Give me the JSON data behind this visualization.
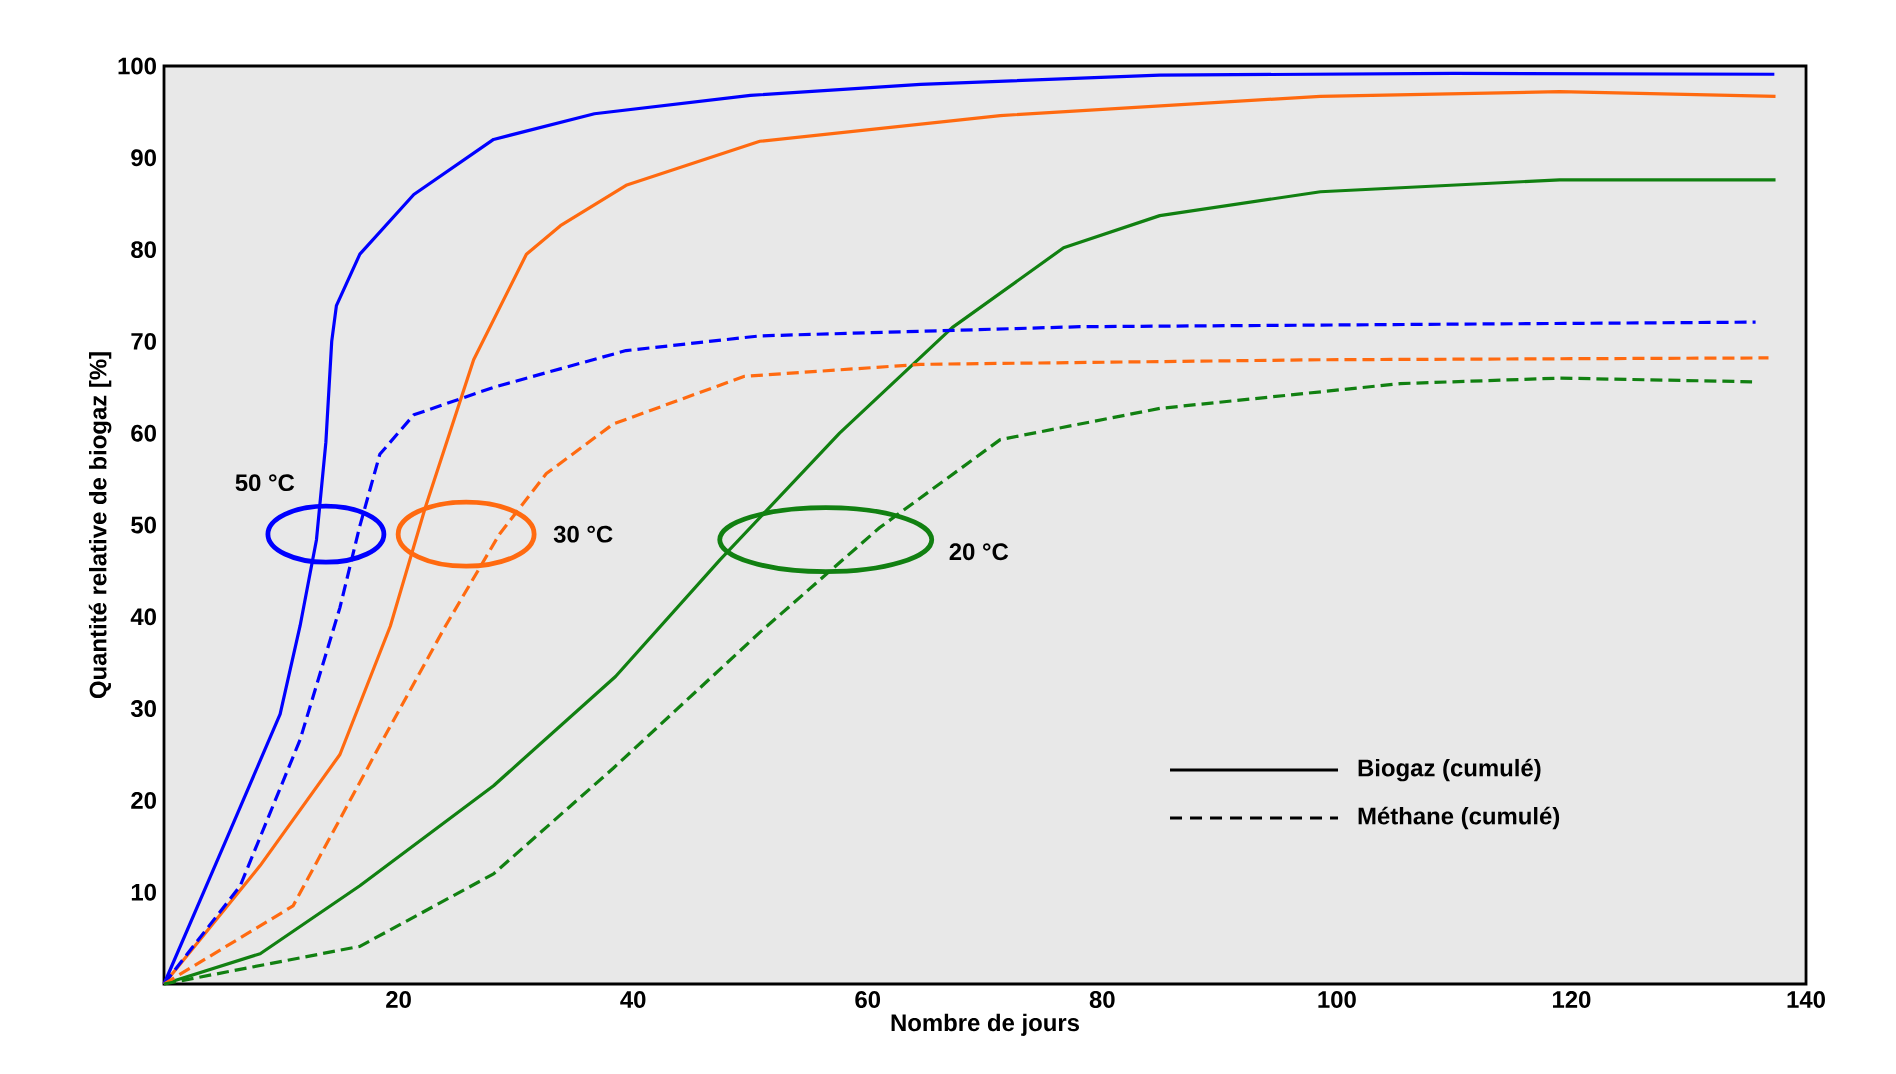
{
  "chart_data": {
    "type": "line",
    "xlabel": "Nombre de jours",
    "ylabel": "Quantité relative de biogaz [%]",
    "xlim": [
      0,
      140
    ],
    "ylim": [
      0,
      100
    ],
    "xticks": [
      20,
      40,
      60,
      80,
      100,
      120,
      140
    ],
    "yticks": [
      10,
      20,
      30,
      40,
      50,
      60,
      70,
      80,
      90,
      100
    ],
    "grid": false,
    "marker": "none",
    "series": [
      {
        "color": "#0000ff",
        "line_style": "solid",
        "x": [
          0,
          5.3,
          9.9,
          11.6,
          13,
          13.8,
          14.3,
          14.7,
          16.7,
          21.3,
          28.1,
          36.7,
          50,
          64.5,
          84.9,
          110,
          137.3
        ],
        "values": [
          0,
          15.7,
          29.4,
          39,
          48.4,
          59,
          70,
          73.9,
          79.5,
          86,
          92,
          94.8,
          96.8,
          98,
          99,
          99.2,
          99.1
        ]
      },
      {
        "color": "#ff6a10",
        "line_style": "solid",
        "x": [
          0,
          8.2,
          15,
          19.3,
          22.3,
          26.4,
          30.9,
          33.8,
          39.4,
          50.8,
          71.3,
          98.6,
          119,
          137.4
        ],
        "values": [
          0,
          12.9,
          25,
          39,
          52,
          68,
          79.5,
          82.6,
          87,
          91.8,
          94.6,
          96.7,
          97.2,
          96.7
        ]
      },
      {
        "color": "#118011",
        "line_style": "solid",
        "x": [
          0,
          8.2,
          16.7,
          28.1,
          38.5,
          47.4,
          57.6,
          67.2,
          76.7,
          84.9,
          98.6,
          119,
          137.4
        ],
        "values": [
          0,
          3.3,
          10.7,
          21.6,
          33.5,
          46.2,
          60,
          71.5,
          80.2,
          83.7,
          86.3,
          87.6,
          87.6
        ]
      },
      {
        "color": "#0000ff",
        "line_style": "dashed",
        "x": [
          0,
          6.5,
          11.6,
          15,
          16.7,
          18.4,
          21.3,
          28.1,
          39.4,
          50.8,
          78.1,
          135.7
        ],
        "values": [
          0,
          10.7,
          26.6,
          41,
          49.9,
          57.7,
          62,
          65,
          69,
          70.6,
          71.6,
          72.1
        ]
      },
      {
        "color": "#ff6a10",
        "line_style": "dashed",
        "x": [
          0,
          11,
          18.4,
          24,
          28.6,
          32.6,
          38.3,
          49.5,
          64.5,
          98.6,
          136.8
        ],
        "values": [
          0,
          8.5,
          26,
          39,
          49,
          55.6,
          61,
          66.2,
          67.5,
          68,
          68.2
        ]
      },
      {
        "color": "#118011",
        "line_style": "dashed",
        "x": [
          0,
          16.7,
          28.1,
          38.3,
          50.8,
          61,
          71.3,
          84.9,
          105.4,
          119,
          135.4
        ],
        "values": [
          0,
          4.1,
          12,
          23.5,
          38.3,
          49.7,
          59.3,
          62.7,
          65.4,
          66,
          65.6
        ]
      }
    ],
    "annotations": [
      "50 °C",
      "30 °C",
      "20 °C",
      "Biogaz (cumulé)",
      "Méthane (cumulé)"
    ]
  }
}
